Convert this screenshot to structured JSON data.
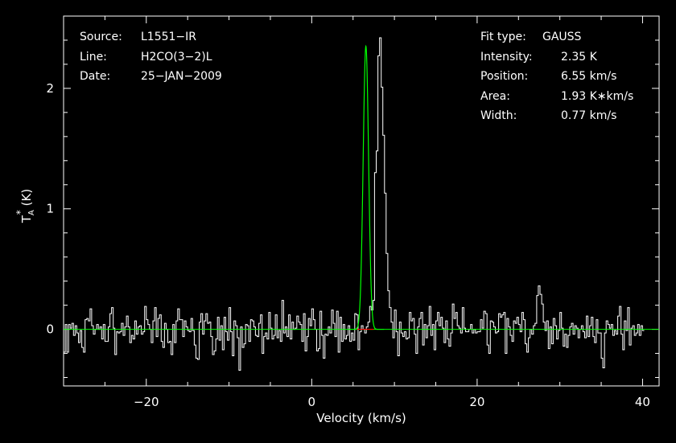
{
  "chart_data": {
    "type": "line",
    "style": "step",
    "xlabel": "Velocity (km/s)",
    "ylabel": "T*A (K)",
    "ylabel_main": "T",
    "ylabel_sup": "*",
    "ylabel_sub": "A",
    "ylabel_unit": " (K)",
    "xlim": [
      -30,
      42
    ],
    "ylim": [
      -0.47,
      2.6
    ],
    "x_ticks": [
      -20,
      0,
      20,
      40
    ],
    "x_tick_labels": [
      "−20",
      "0",
      "20",
      "40"
    ],
    "y_ticks": [
      0,
      1,
      2
    ],
    "y_tick_labels": [
      "0",
      "1",
      "2"
    ],
    "colors": {
      "background": "#000000",
      "axes": "#ffffff",
      "spectrum": "#ffffff",
      "fit": "#00ff00",
      "fit_region": "#ff0000"
    },
    "spectrum": {
      "x_start": -30,
      "dx": 0.2,
      "values": [
        -0.19,
        0.04,
        -0.19,
        0.04,
        0.01,
        0.05,
        -0.05,
        0.03,
        -0.03,
        -0.11,
        -0.01,
        -0.15,
        -0.19,
        0.08,
        0.09,
        0.07,
        0.17,
        0.03,
        -0.04,
        0.0,
        0.04,
        0.0,
        0.02,
        -0.08,
        0.04,
        -0.1,
        -0.1,
        0.02,
        0.13,
        0.18,
        0.01,
        -0.21,
        -0.02,
        -0.03,
        -0.02,
        0.05,
        -0.05,
        0.02,
        0.11,
        0.02,
        -0.11,
        -0.05,
        -0.08,
        0.07,
        -0.04,
        0.02,
        0.03,
        -0.04,
        -0.02,
        0.19,
        0.08,
        0.04,
        0.0,
        -0.11,
        0.07,
        0.18,
        -0.06,
        0.09,
        0.12,
        -0.1,
        -0.15,
        0.05,
        0.0,
        -0.11,
        -0.1,
        -0.21,
        0.04,
        -0.11,
        0.07,
        0.17,
        0.08,
        0.08,
        -0.06,
        0.07,
        0.02,
        -0.01,
        -0.02,
        0.09,
        -0.01,
        -0.13,
        -0.24,
        -0.25,
        0.06,
        0.13,
        -0.04,
        0.07,
        0.13,
        0.05,
        0.06,
        -0.06,
        -0.21,
        -0.18,
        -0.08,
        0.1,
        -0.09,
        0.03,
        -0.17,
        0.1,
        -0.02,
        -0.09,
        0.18,
        -0.02,
        -0.22,
        0.07,
        0.03,
        -0.07,
        -0.34,
        0.02,
        -0.15,
        -0.12,
        0.04,
        0.03,
        -0.1,
        0.08,
        0.07,
        0.02,
        -0.05,
        -0.06,
        0.05,
        0.12,
        -0.2,
        -0.06,
        -0.03,
        -0.08,
        0.14,
        0.01,
        -0.08,
        -0.05,
        0.12,
        -0.07,
        -0.01,
        -0.1,
        0.24,
        -0.03,
        0.02,
        -0.06,
        0.12,
        -0.08,
        0.06,
        0.0,
        0.01,
        0.11,
        0.06,
        0.04,
        -0.1,
        0.13,
        -0.18,
        -0.06,
        0.09,
        0.03,
        0.17,
        0.08,
        0.0,
        -0.18,
        -0.16,
        0.15,
        -0.05,
        -0.24,
        -0.04,
        -0.05,
        0.02,
        -0.03,
        0.16,
        0.05,
        -0.06,
        0.15,
        -0.19,
        0.1,
        -0.1,
        0.04,
        -0.08,
        -0.05,
        0.03,
        -0.1,
        -0.03,
        -0.09,
        0.13,
        0.12,
        -0.17,
        -0.02,
        0.03,
        0.0,
        -0.03,
        0.02,
        0.06,
        0.19,
        0.16,
        0.24,
        1.3,
        1.48,
        2.27,
        2.42,
        2.01,
        1.61,
        1.13,
        0.63,
        0.32,
        0.18,
        0.06,
        -0.07,
        0.16,
        -0.02,
        -0.22,
        0.06,
        -0.03,
        -0.06,
        -0.02,
        -0.08,
        -0.07,
        0.14,
        0.07,
        0.09,
        -0.04,
        -0.2,
        0.02,
        0.09,
        0.14,
        -0.13,
        0.04,
        -0.07,
        0.03,
        0.19,
        -0.05,
        0.04,
        -0.17,
        0.07,
        0.14,
        0.03,
        0.1,
        0.01,
        -0.11,
        0.07,
        -0.08,
        -0.14,
        -0.03,
        0.21,
        0.09,
        0.14,
        0.03,
        0.01,
        -0.03,
        0.18,
        0.01,
        -0.02,
        -0.02,
        0.0,
        0.04,
        -0.03,
        0.0,
        -0.03,
        -0.02,
        -0.02,
        0.08,
        0.01,
        0.15,
        0.13,
        -0.13,
        -0.2,
        0.07,
        0.06,
        0.02,
        -0.03,
        -0.02,
        0.13,
        0.1,
        0.12,
        0.14,
        -0.2,
        0.09,
        0.02,
        -0.05,
        -0.1,
        0.07,
        0.05,
        0.1,
        0.04,
        -0.02,
        0.14,
        0.08,
        -0.12,
        -0.19,
        -0.07,
        0.0,
        -0.04,
        0.03,
        0.05,
        0.28,
        0.36,
        0.29,
        0.21,
        0.06,
        -0.01,
        0.07,
        -0.16,
        0.02,
        -0.12,
        0.09,
        0.03,
        -0.08,
        -0.01,
        0.14,
        0.01,
        -0.14,
        -0.04,
        -0.15,
        -0.05,
        0.02,
        0.05,
        -0.04,
        0.03,
        0.01,
        -0.07,
        0.0,
        0.03,
        -0.02,
        -0.07,
        0.11,
        -0.06,
        0.03,
        0.1,
        -0.06,
        -0.11,
        0.08,
        -0.03,
        -0.03,
        -0.24,
        -0.32,
        -0.03,
        0.07,
        0.04,
        0.01,
        0.04,
        -0.05,
        -0.01,
        -0.04,
        0.11,
        0.19,
        -0.04,
        -0.17,
        0.07,
        -0.01,
        0.18,
        -0.13,
        0.01,
        0.03,
        -0.05,
        -0.03,
        0.04,
        -0.05,
        0.03,
        -0.01
      ]
    },
    "fit": {
      "amplitude": 2.35,
      "center": 6.55,
      "fwhm": 0.77,
      "fit_region": [
        5.5,
        7.5
      ]
    },
    "info_left": [
      {
        "label": "Source:",
        "value": "L1551−IR"
      },
      {
        "label": "Line:",
        "value": "H2CO(3−2)L"
      },
      {
        "label": "Date:",
        "value": "25−JAN−2009"
      }
    ],
    "info_right": [
      {
        "label": "Fit type:",
        "value": "GAUSS"
      },
      {
        "label": "Intensity:",
        "value": "2.35 K"
      },
      {
        "label": "Position:",
        "value": "6.55 km/s"
      },
      {
        "label": "Area:",
        "value": "1.93 K∗km/s"
      },
      {
        "label": "Width:",
        "value": "0.77 km/s"
      }
    ]
  }
}
